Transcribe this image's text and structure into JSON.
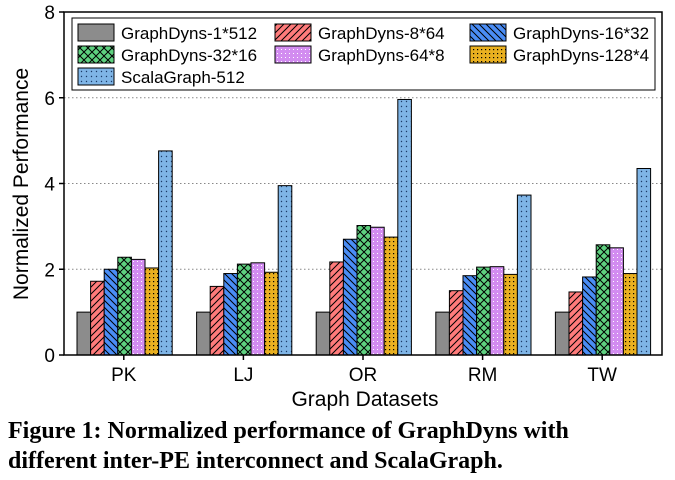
{
  "chart_data": {
    "type": "bar",
    "xlabel": "Graph Datasets",
    "ylabel": "Normalized Performance",
    "ylim": [
      0,
      8
    ],
    "yticks": [
      0,
      2,
      4,
      6,
      8
    ],
    "grid": "horizontal dotted",
    "legend_position": "top",
    "categories": [
      "PK",
      "LJ",
      "OR",
      "RM",
      "TW"
    ],
    "series": [
      {
        "name": "GraphDyns-1*512",
        "color": "#8c8c8c",
        "pattern": "solid",
        "values": [
          1.0,
          1.0,
          1.0,
          1.0,
          1.0
        ]
      },
      {
        "name": "GraphDyns-8*64",
        "color": "#ff7b7b",
        "pattern": "diag-up",
        "values": [
          1.72,
          1.6,
          2.17,
          1.5,
          1.47
        ]
      },
      {
        "name": "GraphDyns-16*32",
        "color": "#4a8df5",
        "pattern": "diag-down",
        "values": [
          2.0,
          1.9,
          2.7,
          1.85,
          1.82
        ]
      },
      {
        "name": "GraphDyns-32*16",
        "color": "#5ed17f",
        "pattern": "crosshatch",
        "values": [
          2.28,
          2.12,
          3.02,
          2.05,
          2.57
        ]
      },
      {
        "name": "GraphDyns-64*8",
        "color": "#d28cf0",
        "pattern": "dots-fine",
        "values": [
          2.23,
          2.15,
          2.98,
          2.06,
          2.5
        ]
      },
      {
        "name": "GraphDyns-128*4",
        "color": "#e9b020",
        "pattern": "grid-dots",
        "values": [
          2.03,
          1.93,
          2.75,
          1.88,
          1.9
        ]
      },
      {
        "name": "ScalaGraph-512",
        "color": "#7fb5e6",
        "pattern": "dots",
        "values": [
          4.76,
          3.95,
          5.96,
          3.73,
          4.35
        ]
      }
    ]
  },
  "caption": {
    "line1": "Figure 1:  Normalized performance of GraphDyns with",
    "line2": "different inter-PE interconnect and ScalaGraph."
  }
}
